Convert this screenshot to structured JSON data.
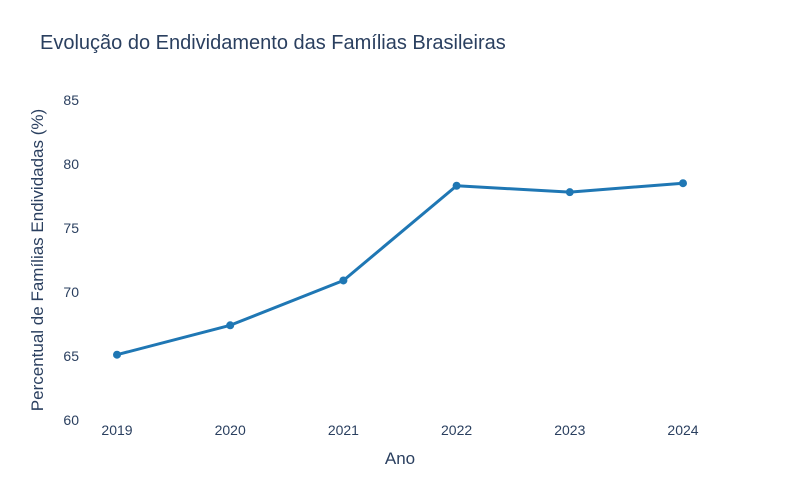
{
  "chart_data": {
    "type": "line",
    "title": "Evolução do Endividamento das Famílias Brasileiras",
    "xlabel": "Ano",
    "ylabel": "Percentual de Famílias Endividadas (%)",
    "x": [
      "2019",
      "2020",
      "2021",
      "2022",
      "2023",
      "2024"
    ],
    "series": [
      {
        "values": [
          65.1,
          67.4,
          70.9,
          78.3,
          77.8,
          78.5
        ],
        "color": "#1f77b4"
      }
    ],
    "ylim": [
      60,
      85
    ],
    "yticks": [
      "60",
      "65",
      "70",
      "75",
      "80",
      "85"
    ],
    "grid": false,
    "markers": true
  }
}
